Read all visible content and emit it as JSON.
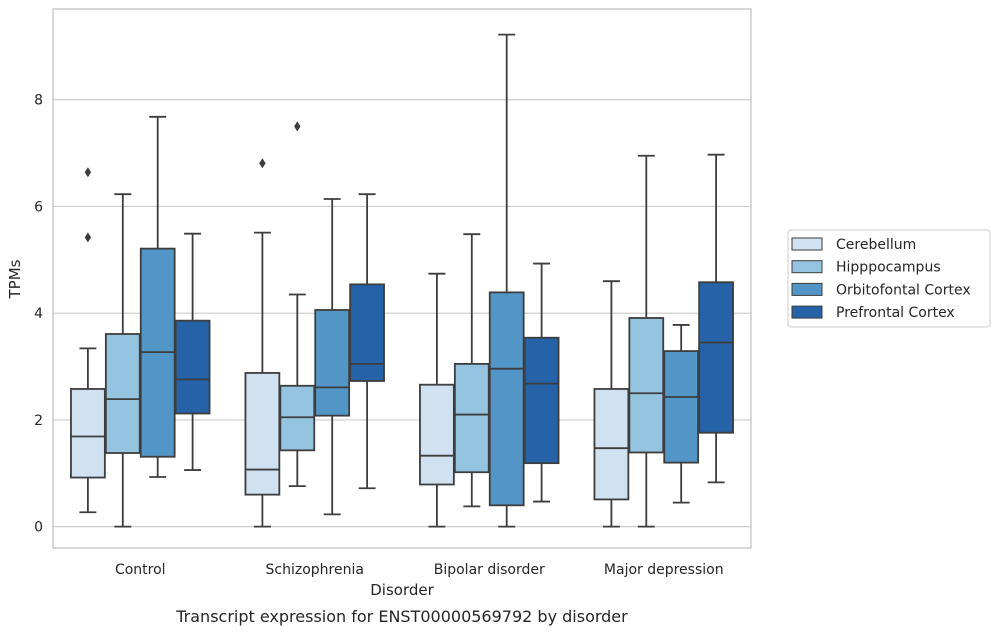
{
  "caption": "Transcript expression for ENST00000569792 by disorder",
  "chart_data": {
    "type": "boxplot",
    "xlabel": "Disorder",
    "ylabel": "TPMs",
    "ylim": [
      -0.4,
      9.7
    ],
    "yticks": [
      0,
      2,
      4,
      6,
      8
    ],
    "grid": "horizontal",
    "legend_position": "right",
    "categories": [
      "Control",
      "Schizophrenia",
      "Bipolar disorder",
      "Major depression"
    ],
    "series": [
      {
        "name": "Cerebellum",
        "color": "#d0e1f2",
        "boxes": [
          {
            "whislo": 0.27,
            "q1": 0.92,
            "med": 1.69,
            "q3": 2.58,
            "whishi": 3.34,
            "fliers": [
              5.42,
              6.64
            ]
          },
          {
            "whislo": 0.0,
            "q1": 0.6,
            "med": 1.07,
            "q3": 2.88,
            "whishi": 5.51,
            "fliers": [
              6.81
            ]
          },
          {
            "whislo": 0.0,
            "q1": 0.79,
            "med": 1.33,
            "q3": 2.66,
            "whishi": 4.74,
            "fliers": []
          },
          {
            "whislo": 0.0,
            "q1": 0.51,
            "med": 1.47,
            "q3": 2.58,
            "whishi": 4.6,
            "fliers": []
          }
        ]
      },
      {
        "name": "Hipppocampus",
        "color": "#94c4df",
        "boxes": [
          {
            "whislo": 0.0,
            "q1": 1.38,
            "med": 2.39,
            "q3": 3.61,
            "whishi": 6.23,
            "fliers": []
          },
          {
            "whislo": 0.76,
            "q1": 1.43,
            "med": 2.05,
            "q3": 2.64,
            "whishi": 4.35,
            "fliers": [
              7.5
            ]
          },
          {
            "whislo": 0.38,
            "q1": 1.02,
            "med": 2.1,
            "q3": 3.05,
            "whishi": 5.48,
            "fliers": []
          },
          {
            "whislo": 0.0,
            "q1": 1.39,
            "med": 2.5,
            "q3": 3.91,
            "whishi": 6.95,
            "fliers": []
          }
        ]
      },
      {
        "name": "Orbitofontal Cortex",
        "color": "#5296c8",
        "boxes": [
          {
            "whislo": 0.93,
            "q1": 1.31,
            "med": 3.27,
            "q3": 5.21,
            "whishi": 7.68,
            "fliers": []
          },
          {
            "whislo": 0.23,
            "q1": 2.08,
            "med": 2.61,
            "q3": 4.06,
            "whishi": 6.14,
            "fliers": []
          },
          {
            "whislo": 0.0,
            "q1": 0.4,
            "med": 2.96,
            "q3": 4.39,
            "whishi": 9.22,
            "fliers": []
          },
          {
            "whislo": 0.45,
            "q1": 1.2,
            "med": 2.43,
            "q3": 3.29,
            "whishi": 3.78,
            "fliers": []
          }
        ]
      },
      {
        "name": "Prefrontal Cortex",
        "color": "#2562a8",
        "boxes": [
          {
            "whislo": 1.06,
            "q1": 2.12,
            "med": 2.76,
            "q3": 3.86,
            "whishi": 5.49,
            "fliers": []
          },
          {
            "whislo": 0.72,
            "q1": 2.73,
            "med": 3.05,
            "q3": 4.54,
            "whishi": 6.23,
            "fliers": []
          },
          {
            "whislo": 0.47,
            "q1": 1.19,
            "med": 2.68,
            "q3": 3.54,
            "whishi": 4.93,
            "fliers": []
          },
          {
            "whislo": 0.83,
            "q1": 1.76,
            "med": 3.45,
            "q3": 4.58,
            "whishi": 6.97,
            "fliers": []
          }
        ]
      }
    ]
  }
}
